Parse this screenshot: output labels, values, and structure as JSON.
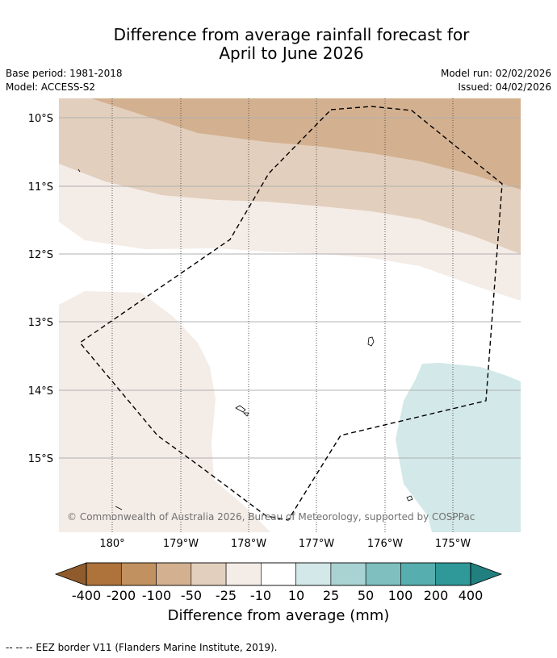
{
  "header": {
    "title_line1": "Difference from average rainfall forecast for",
    "title_line2": "April to June 2026",
    "base_period": "Base period: 1981-2018",
    "model": "Model: ACCESS-S2",
    "model_run": "Model run: 02/02/2026",
    "issued": "Issued: 04/02/2026"
  },
  "map": {
    "lat_labels": [
      "10°S",
      "11°S",
      "12°S",
      "13°S",
      "14°S",
      "15°S"
    ],
    "lon_labels": [
      "180°",
      "179°W",
      "178°W",
      "177°W",
      "176°W",
      "175°W"
    ],
    "copyright": "© Commonwealth of Australia 2026, Bureau of Meteorology, supported by COSPPac"
  },
  "colorbar": {
    "labels": [
      "-400",
      "-200",
      "-100",
      "-50",
      "-25",
      "-10",
      "10",
      "25",
      "50",
      "100",
      "200",
      "400"
    ],
    "colors": [
      "#ad733a",
      "#c1915f",
      "#d3b08f",
      "#e3cfbd",
      "#f4ece7",
      "#ffffff",
      "#d3e8e8",
      "#a9d3d3",
      "#7fbfbf",
      "#57aeae",
      "#2f9999"
    ],
    "extend_low_color": "#8f5b2c",
    "extend_high_color": "#217f7f",
    "title": "Difference from average (mm)"
  },
  "legend": {
    "footnote": "--  --  -- EEZ border V11 (Flanders Marine Institute, 2019)."
  }
}
